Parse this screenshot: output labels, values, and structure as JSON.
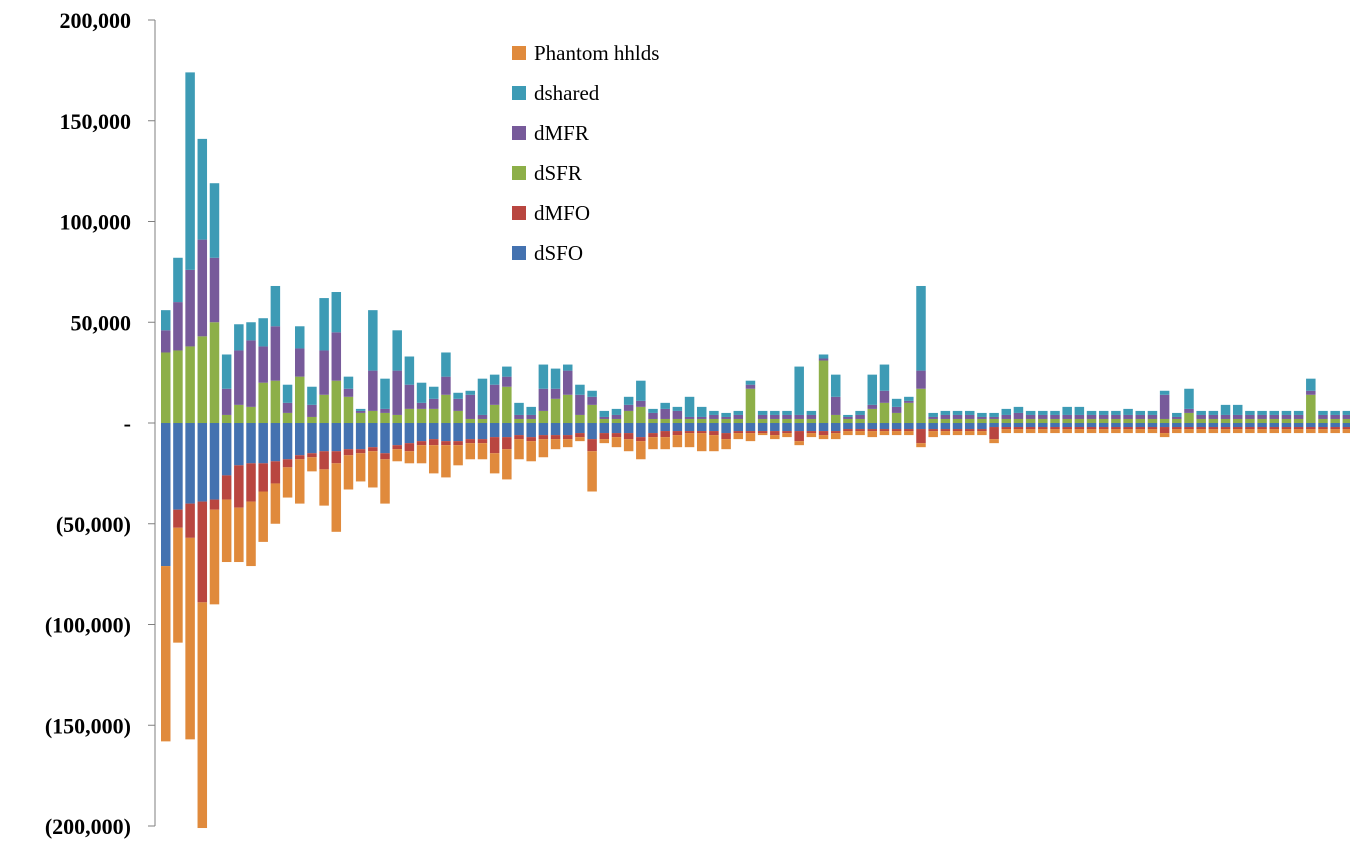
{
  "chart_data": {
    "type": "bar",
    "stacked": true,
    "title": "",
    "xlabel": "",
    "ylabel": "",
    "ylim": [
      -200000,
      200000
    ],
    "yticks": [
      200000,
      150000,
      100000,
      50000,
      0,
      -50000,
      -100000,
      -150000,
      -200000
    ],
    "ytick_labels": [
      "200,000",
      "150,000",
      "100,000",
      "50,000",
      "-",
      "(50,000)",
      "(100,000)",
      "(150,000)",
      "(200,000)"
    ],
    "grid": false,
    "legend_position": "top-center",
    "legend": [
      "Phantom hhlds",
      "dshared",
      "dMFR",
      "dSFR",
      "dMFO",
      "dSFO"
    ],
    "colors": {
      "Phantom hhlds": "#E08A3C",
      "dshared": "#3D9BB5",
      "dMFR": "#775A9A",
      "dSFR": "#8DAF48",
      "dMFO": "#B94640",
      "dSFO": "#4472B0"
    },
    "n_categories": 98,
    "series": [
      {
        "name": "dSFO",
        "values": [
          -71000,
          -43000,
          -40000,
          -39000,
          -38000,
          -26000,
          -21000,
          -20000,
          -20000,
          -19000,
          -18000,
          -16000,
          -15000,
          -14000,
          -14000,
          -13000,
          -13000,
          -12000,
          -15000,
          -11000,
          -10000,
          -9000,
          -8000,
          -9000,
          -9000,
          -8000,
          -8000,
          -7000,
          -7000,
          -6000,
          -7000,
          -6000,
          -6000,
          -6000,
          -5000,
          -8000,
          -5000,
          -5000,
          -5000,
          -7000,
          -5000,
          -4000,
          -4000,
          -4000,
          -4000,
          -4000,
          -5000,
          -4000,
          -4000,
          -4000,
          -4000,
          -4000,
          -4000,
          -4000,
          -4000,
          -4000,
          -3000,
          -3000,
          -3000,
          -3000,
          -3000,
          -3000,
          -3000,
          -3000,
          -3000,
          -3000,
          -3000,
          -3000,
          -2000,
          -2000,
          -2000,
          -2000,
          -2000,
          -2000,
          -2000,
          -2000,
          -2000,
          -2000,
          -2000,
          -2000,
          -2000,
          -2000,
          -2000,
          -2000,
          -2000,
          -2000,
          -2000,
          -2000,
          -2000,
          -2000,
          -2000,
          -2000,
          -2000,
          -2000,
          -2000,
          -2000,
          -2000,
          -2000
        ]
      },
      {
        "name": "dMFO",
        "values": [
          0,
          -9000,
          -17000,
          -50000,
          -5000,
          -12000,
          -21000,
          -19000,
          -14000,
          -11000,
          -4000,
          -2000,
          -2000,
          -9000,
          -6000,
          -3000,
          -2000,
          -2000,
          -3000,
          -2000,
          -4000,
          -2000,
          -3000,
          -2000,
          -2000,
          -2000,
          -2000,
          -8000,
          -6000,
          -2000,
          -2000,
          -2000,
          -2000,
          -2000,
          -2000,
          -6000,
          -3000,
          -2000,
          -3000,
          -2000,
          -2000,
          -3000,
          -2000,
          -1000,
          -1000,
          -2000,
          -3000,
          -1000,
          -1000,
          -1000,
          -2000,
          -1000,
          -5000,
          -1000,
          -2000,
          -1000,
          -1000,
          -1000,
          -1000,
          -1000,
          -1000,
          -1000,
          -7000,
          -1000,
          -1000,
          -1000,
          -1000,
          -1000,
          -6000,
          -1000,
          -1000,
          -1000,
          -1000,
          -1000,
          -1000,
          -1000,
          -1000,
          -1000,
          -1000,
          -1000,
          -1000,
          -1000,
          -3000,
          -1000,
          -1000,
          -1000,
          -1000,
          -1000,
          -1000,
          -1000,
          -1000,
          -1000,
          -1000,
          -1000,
          -1000,
          -1000,
          -1000,
          -1000
        ]
      },
      {
        "name": "Phantom hhlds",
        "values": [
          -87000,
          -57000,
          -100000,
          -112000,
          -47000,
          -31000,
          -27000,
          -32000,
          -25000,
          -20000,
          -15000,
          -22000,
          -7000,
          -18000,
          -34000,
          -17000,
          -14000,
          -18000,
          -22000,
          -6000,
          -6000,
          -9000,
          -14000,
          -16000,
          -10000,
          -8000,
          -8000,
          -10000,
          -15000,
          -10000,
          -10000,
          -9000,
          -5000,
          -4000,
          -2000,
          -20000,
          -2000,
          -5000,
          -6000,
          -9000,
          -6000,
          -6000,
          -6000,
          -7000,
          -9000,
          -8000,
          -5000,
          -3000,
          -4000,
          -1000,
          -2000,
          -2000,
          -2000,
          -2000,
          -2000,
          -3000,
          -2000,
          -2000,
          -3000,
          -2000,
          -2000,
          -2000,
          -2000,
          -3000,
          -2000,
          -2000,
          -2000,
          -2000,
          -2000,
          -2000,
          -2000,
          -2000,
          -2000,
          -2000,
          -2000,
          -2000,
          -2000,
          -2000,
          -2000,
          -2000,
          -2000,
          -2000,
          -2000,
          -2000,
          -2000,
          -2000,
          -2000,
          -2000,
          -2000,
          -2000,
          -2000,
          -2000,
          -2000,
          -2000,
          -2000,
          -2000,
          -2000,
          -2000
        ]
      },
      {
        "name": "dSFR",
        "values": [
          35000,
          36000,
          38000,
          43000,
          50000,
          4000,
          9000,
          8000,
          20000,
          21000,
          5000,
          23000,
          3000,
          14000,
          21000,
          13000,
          5000,
          6000,
          5000,
          4000,
          7000,
          7000,
          7000,
          14000,
          6000,
          2000,
          2000,
          9000,
          18000,
          2000,
          2000,
          6000,
          12000,
          14000,
          4000,
          9000,
          2000,
          2000,
          6000,
          8000,
          2000,
          2000,
          2000,
          2000,
          2000,
          2000,
          2000,
          2000,
          17000,
          2000,
          2000,
          2000,
          2000,
          2000,
          31000,
          4000,
          2000,
          2000,
          7000,
          10000,
          5000,
          10000,
          17000,
          2000,
          2000,
          2000,
          2000,
          2000,
          2000,
          2000,
          2000,
          2000,
          2000,
          2000,
          2000,
          2000,
          2000,
          2000,
          2000,
          2000,
          2000,
          2000,
          2000,
          2000,
          5000,
          2000,
          2000,
          2000,
          2000,
          2000,
          2000,
          2000,
          2000,
          2000,
          14000,
          2000,
          2000,
          2000
        ]
      },
      {
        "name": "dMFR",
        "values": [
          11000,
          24000,
          38000,
          48000,
          32000,
          13000,
          27000,
          33000,
          18000,
          27000,
          5000,
          14000,
          6000,
          22000,
          24000,
          4000,
          1000,
          20000,
          2000,
          22000,
          12000,
          3000,
          5000,
          9000,
          6000,
          12000,
          2000,
          10000,
          5000,
          2000,
          2000,
          11000,
          5000,
          12000,
          10000,
          4000,
          1000,
          2000,
          3000,
          3000,
          3000,
          5000,
          4000,
          1000,
          1000,
          2000,
          1000,
          2000,
          2000,
          2000,
          2000,
          2000,
          2000,
          2000,
          1000,
          9000,
          1000,
          2000,
          2000,
          6000,
          3000,
          1000,
          9000,
          1000,
          2000,
          2000,
          2000,
          1000,
          1000,
          2000,
          3000,
          2000,
          2000,
          2000,
          2000,
          2000,
          2000,
          2000,
          2000,
          2000,
          2000,
          2000,
          12000,
          1000,
          2000,
          2000,
          2000,
          2000,
          2000,
          2000,
          2000,
          2000,
          2000,
          2000,
          2000,
          2000,
          2000,
          2000
        ]
      },
      {
        "name": "dshared",
        "values": [
          10000,
          22000,
          98000,
          50000,
          37000,
          17000,
          13000,
          9000,
          14000,
          20000,
          9000,
          11000,
          9000,
          26000,
          20000,
          6000,
          1000,
          30000,
          15000,
          20000,
          14000,
          10000,
          6000,
          12000,
          3000,
          2000,
          18000,
          5000,
          5000,
          6000,
          4000,
          12000,
          10000,
          3000,
          5000,
          3000,
          3000,
          3000,
          4000,
          10000,
          2000,
          3000,
          2000,
          10000,
          5000,
          2000,
          2000,
          2000,
          2000,
          2000,
          2000,
          2000,
          24000,
          2000,
          2000,
          11000,
          1000,
          2000,
          15000,
          13000,
          4000,
          2000,
          42000,
          2000,
          2000,
          2000,
          2000,
          2000,
          2000,
          3000,
          3000,
          2000,
          2000,
          2000,
          4000,
          4000,
          2000,
          2000,
          2000,
          3000,
          2000,
          2000,
          2000,
          2000,
          10000,
          2000,
          2000,
          5000,
          5000,
          2000,
          2000,
          2000,
          2000,
          2000,
          6000,
          2000,
          2000,
          2000
        ]
      }
    ]
  }
}
